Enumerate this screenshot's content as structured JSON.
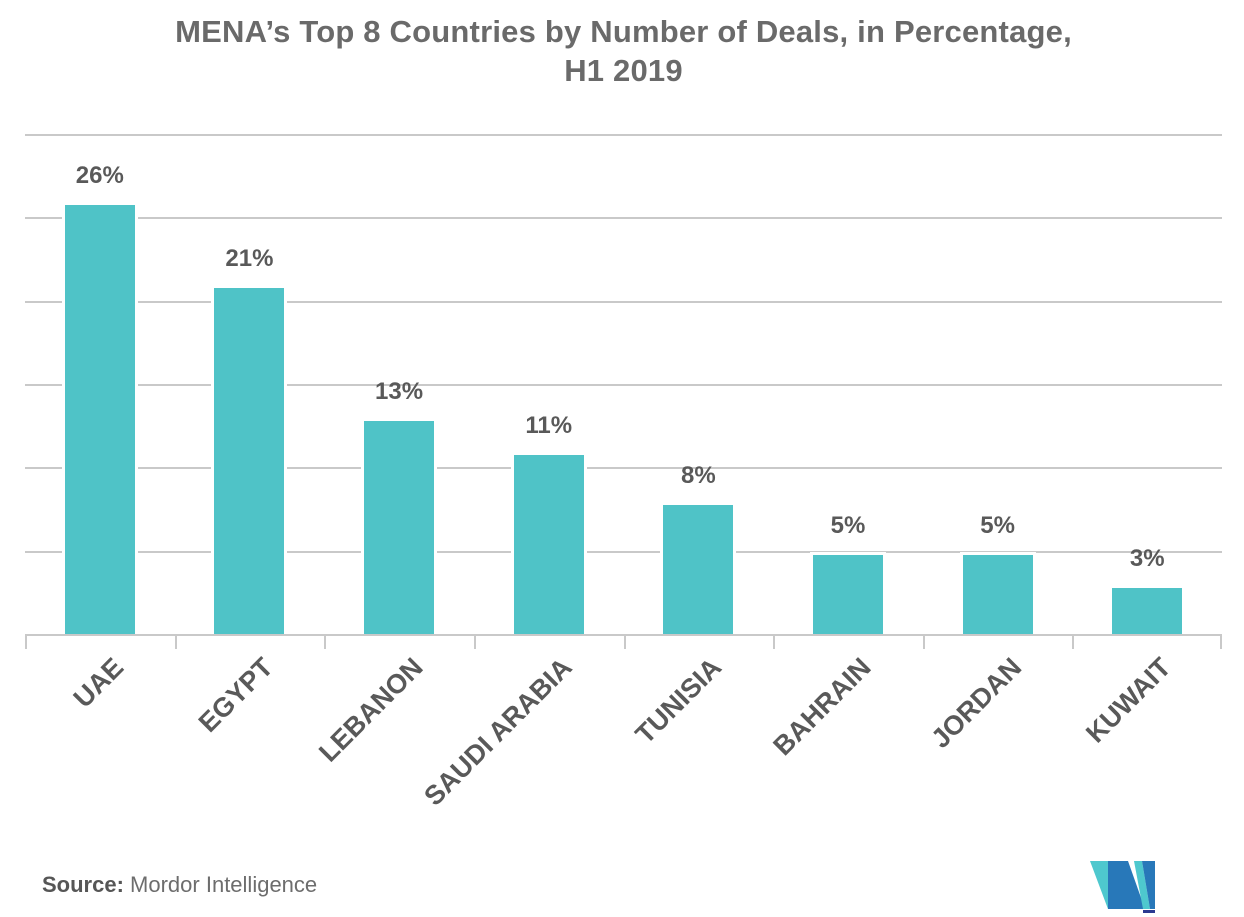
{
  "chart_data": {
    "type": "bar",
    "title": "MENA’s Top 8 Countries by Number of Deals, in Percentage, H1 2019",
    "title_lines": [
      "MENA’s Top 8 Countries by Number of Deals, in Percentage,",
      "H1 2019"
    ],
    "categories": [
      "UAE",
      "EGYPT",
      "LEBANON",
      "SAUDI ARABIA",
      "TUNISIA",
      "BAHRAIN",
      "JORDAN",
      "KUWAIT"
    ],
    "values": [
      26,
      21,
      13,
      11,
      8,
      5,
      5,
      3
    ],
    "value_labels": [
      "26%",
      "21%",
      "13%",
      "11%",
      "8%",
      "5%",
      "5%",
      "3%"
    ],
    "xlabel": "",
    "ylabel": "",
    "ylim": [
      0,
      30
    ],
    "grid_step": 5,
    "grid": true,
    "legend": false,
    "bar_color": "#4FC3C7",
    "grid_color": "#C9C9C9",
    "label_color": "#595959",
    "title_color": "#6A6A6A"
  },
  "source": {
    "label": "Source:",
    "text": "Mordor Intelligence"
  },
  "logo": {
    "name": "Mordor Intelligence logo",
    "teal": "#4EC8CE",
    "blue": "#2878B9",
    "navy": "#2B3990"
  }
}
